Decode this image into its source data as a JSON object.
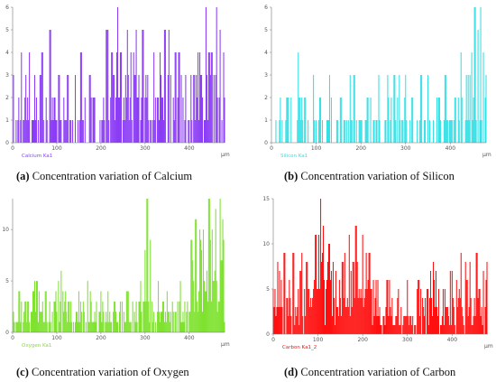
{
  "chart_data": [
    {
      "type": "bar",
      "panel_letter": "a",
      "caption_text": "Concentration variation of Calcium",
      "series_label": "Calcium Ka1",
      "x_unit": "μm",
      "color": "#8b3cf5",
      "xlim": [
        0,
        480
      ],
      "ylim": [
        0,
        6
      ],
      "x_ticks": [
        0,
        100,
        200,
        300,
        400
      ],
      "y_ticks": [
        0,
        1,
        2,
        3,
        4,
        5,
        6
      ],
      "step": 2,
      "profile": [
        [
          0,
          0.5
        ],
        [
          20,
          0.9
        ],
        [
          60,
          1.3
        ],
        [
          100,
          0.9
        ],
        [
          140,
          0.6
        ],
        [
          200,
          0.8
        ],
        [
          215,
          1.6
        ],
        [
          260,
          1.9
        ],
        [
          300,
          1.7
        ],
        [
          340,
          1.5
        ],
        [
          400,
          1.9
        ],
        [
          440,
          2.3
        ],
        [
          480,
          2.0
        ]
      ],
      "peaks": [
        [
          30,
          3
        ],
        [
          50,
          3
        ],
        [
          68,
          4
        ],
        [
          85,
          5
        ],
        [
          105,
          3
        ],
        [
          125,
          3
        ],
        [
          155,
          4
        ],
        [
          175,
          3
        ],
        [
          185,
          2
        ],
        [
          215,
          5
        ],
        [
          225,
          4
        ],
        [
          245,
          4
        ],
        [
          260,
          5
        ],
        [
          268,
          4
        ],
        [
          280,
          5
        ],
        [
          295,
          5
        ],
        [
          320,
          4
        ],
        [
          335,
          3
        ],
        [
          345,
          5
        ],
        [
          368,
          4
        ],
        [
          392,
          3
        ],
        [
          420,
          4
        ],
        [
          438,
          6
        ],
        [
          450,
          4
        ],
        [
          462,
          6
        ],
        [
          470,
          5
        ],
        [
          478,
          4
        ]
      ]
    },
    {
      "type": "bar",
      "panel_letter": "b",
      "caption_text": "Concentration variation of Silicon",
      "series_label": "Silicon Ka1",
      "x_unit": "μm",
      "color": "#33e0e6",
      "xlim": [
        0,
        480
      ],
      "ylim": [
        0,
        6
      ],
      "x_ticks": [
        0,
        100,
        200,
        300,
        400
      ],
      "y_ticks": [
        0,
        1,
        2,
        3,
        4,
        5,
        6
      ],
      "step": 2,
      "profile": [
        [
          0,
          0.4
        ],
        [
          40,
          0.5
        ],
        [
          80,
          0.7
        ],
        [
          120,
          0.6
        ],
        [
          160,
          0.5
        ],
        [
          220,
          0.6
        ],
        [
          260,
          0.9
        ],
        [
          300,
          0.8
        ],
        [
          340,
          0.6
        ],
        [
          380,
          0.7
        ],
        [
          420,
          1.1
        ],
        [
          460,
          1.4
        ],
        [
          480,
          1.0
        ]
      ],
      "peaks": [
        [
          20,
          2
        ],
        [
          35,
          2
        ],
        [
          60,
          4
        ],
        [
          75,
          2
        ],
        [
          110,
          2
        ],
        [
          130,
          3
        ],
        [
          155,
          2
        ],
        [
          185,
          3
        ],
        [
          215,
          2
        ],
        [
          240,
          3
        ],
        [
          260,
          3
        ],
        [
          275,
          3
        ],
        [
          300,
          3
        ],
        [
          315,
          2
        ],
        [
          335,
          3
        ],
        [
          350,
          3
        ],
        [
          375,
          2
        ],
        [
          390,
          3
        ],
        [
          410,
          2
        ],
        [
          425,
          2
        ],
        [
          440,
          3
        ],
        [
          455,
          6
        ],
        [
          462,
          5
        ],
        [
          468,
          6
        ],
        [
          474,
          4
        ],
        [
          480,
          3
        ]
      ]
    },
    {
      "type": "bar",
      "panel_letter": "c",
      "caption_text": "Concentration variation of Oxygen",
      "series_label": "Oxygen Ka1",
      "x_unit": "μm",
      "color": "#7ee22e",
      "xlim": [
        0,
        480
      ],
      "ylim": [
        0,
        13
      ],
      "x_ticks": [
        0,
        100,
        200,
        300,
        400
      ],
      "y_ticks": [
        0,
        5,
        10
      ],
      "step": 2,
      "profile": [
        [
          0,
          1.2
        ],
        [
          40,
          1.4
        ],
        [
          80,
          1.6
        ],
        [
          120,
          1.3
        ],
        [
          160,
          1.5
        ],
        [
          200,
          1.3
        ],
        [
          240,
          1.4
        ],
        [
          280,
          1.6
        ],
        [
          300,
          2.2
        ],
        [
          320,
          1.8
        ],
        [
          360,
          1.4
        ],
        [
          400,
          2.0
        ],
        [
          420,
          3.5
        ],
        [
          440,
          4.2
        ],
        [
          460,
          4.5
        ],
        [
          480,
          4.0
        ]
      ],
      "peaks": [
        [
          15,
          4
        ],
        [
          35,
          3
        ],
        [
          55,
          5
        ],
        [
          75,
          4
        ],
        [
          95,
          3
        ],
        [
          110,
          6
        ],
        [
          120,
          4
        ],
        [
          150,
          4
        ],
        [
          170,
          5
        ],
        [
          200,
          4
        ],
        [
          230,
          3
        ],
        [
          260,
          4
        ],
        [
          290,
          5
        ],
        [
          300,
          8
        ],
        [
          305,
          13
        ],
        [
          312,
          9
        ],
        [
          330,
          5
        ],
        [
          350,
          4
        ],
        [
          380,
          5
        ],
        [
          405,
          9
        ],
        [
          415,
          11
        ],
        [
          425,
          9
        ],
        [
          432,
          10
        ],
        [
          445,
          13
        ],
        [
          452,
          10
        ],
        [
          460,
          12
        ],
        [
          470,
          13
        ],
        [
          478,
          9
        ]
      ]
    },
    {
      "type": "bar",
      "panel_letter": "d",
      "caption_text": "Concentration variation of Carbon",
      "series_label": "Carbon Ka1_2",
      "x_unit": "μm",
      "color": "#ff1010",
      "xlim": [
        0,
        480
      ],
      "ylim": [
        0,
        15
      ],
      "x_ticks": [
        0,
        100,
        200,
        300,
        400
      ],
      "y_ticks": [
        0,
        5,
        10,
        15
      ],
      "step": 2,
      "profile": [
        [
          0,
          3
        ],
        [
          40,
          3.5
        ],
        [
          80,
          4
        ],
        [
          100,
          6
        ],
        [
          110,
          5.5
        ],
        [
          140,
          4
        ],
        [
          180,
          5
        ],
        [
          210,
          4.5
        ],
        [
          240,
          2.5
        ],
        [
          280,
          1.8
        ],
        [
          320,
          2.2
        ],
        [
          360,
          2.5
        ],
        [
          380,
          1.5
        ],
        [
          400,
          2.8
        ],
        [
          440,
          3.2
        ],
        [
          480,
          3
        ]
      ],
      "peaks": [
        [
          10,
          8
        ],
        [
          25,
          9
        ],
        [
          45,
          9
        ],
        [
          60,
          7
        ],
        [
          75,
          8
        ],
        [
          95,
          11
        ],
        [
          102,
          11
        ],
        [
          106,
          15
        ],
        [
          112,
          12
        ],
        [
          125,
          10
        ],
        [
          140,
          7
        ],
        [
          155,
          8
        ],
        [
          170,
          11
        ],
        [
          185,
          12
        ],
        [
          200,
          11
        ],
        [
          215,
          9
        ],
        [
          230,
          6
        ],
        [
          255,
          6
        ],
        [
          280,
          5
        ],
        [
          300,
          6
        ],
        [
          325,
          6
        ],
        [
          345,
          5
        ],
        [
          360,
          6
        ],
        [
          380,
          5
        ],
        [
          400,
          7
        ],
        [
          420,
          9
        ],
        [
          440,
          8
        ],
        [
          455,
          9
        ],
        [
          470,
          7
        ],
        [
          478,
          8
        ]
      ]
    }
  ]
}
